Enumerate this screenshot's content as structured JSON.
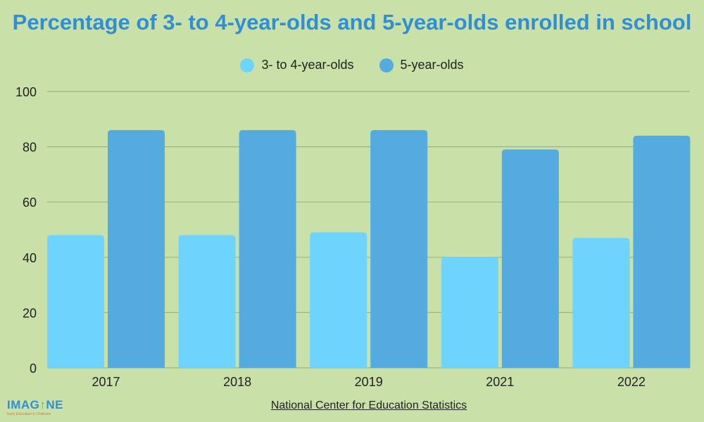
{
  "chart_data": {
    "type": "bar",
    "title": "Percentage of 3- to 4-year-olds and 5-year-olds enrolled in school",
    "categories": [
      "2017",
      "2018",
      "2019",
      "2021",
      "2022"
    ],
    "series": [
      {
        "name": "3- to 4-year-olds",
        "values": [
          48,
          48,
          49,
          40,
          47
        ],
        "color": "#6ed4fe"
      },
      {
        "name": "5-year-olds",
        "values": [
          86,
          86,
          86,
          79,
          84
        ],
        "color": "#54abe0"
      }
    ],
    "xlabel": "",
    "ylabel": "",
    "ylim": [
      0,
      100
    ],
    "yticks": [
      0,
      20,
      40,
      60,
      80,
      100
    ],
    "grid": true,
    "legend_position": "top-center"
  },
  "source": "National Center for Education Statistics",
  "logo": {
    "name": "IMAGINE",
    "tagline": "Early Education & Childcare"
  },
  "colors": {
    "background": "#c9e1a9",
    "title": "#2f8fd2",
    "grid": "#9db47f"
  }
}
